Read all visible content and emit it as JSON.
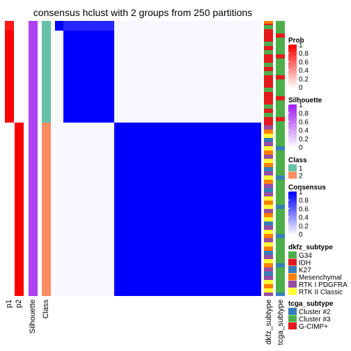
{
  "title": "consensus hclust with 2 groups from 250 partitions",
  "chart_data": {
    "type": "heatmap",
    "title": "consensus hclust with 2 groups from 250 partitions",
    "column_labels": [
      "p1",
      "p2",
      "Silhouette",
      "Class",
      "dkfz_subtype",
      "tcga_subtype"
    ],
    "groups": [
      {
        "class": "1",
        "share": 0.37,
        "p1": 1,
        "p2": 0,
        "silhouette": 0.85,
        "consensus_within": 1,
        "consensus_between": 0
      },
      {
        "class": "2",
        "share": 0.63,
        "p1": 0,
        "p2": 1,
        "silhouette": 0.85,
        "consensus_within": 1,
        "consensus_between": 0
      }
    ],
    "legends": [
      {
        "title": "Prob",
        "type": "continuous",
        "ticks": [
          "1",
          "0.8",
          "0.6",
          "0.4",
          "0.2",
          "0"
        ],
        "colors": [
          "#ff0000",
          "#ffffff"
        ]
      },
      {
        "title": "Silhouette",
        "type": "continuous",
        "ticks": [
          "1",
          "0.8",
          "0.6",
          "0.4",
          "0.2",
          "0"
        ],
        "colors": [
          "#a020f0",
          "#ffffff"
        ]
      },
      {
        "title": "Class",
        "type": "discrete",
        "items": [
          {
            "label": "1",
            "color": "#66c2a5"
          },
          {
            "label": "2",
            "color": "#fc8d62"
          }
        ]
      },
      {
        "title": "Consensus",
        "type": "continuous",
        "ticks": [
          "1",
          "0.8",
          "0.6",
          "0.4",
          "0.2",
          "0"
        ],
        "colors": [
          "#0000ff",
          "#ffffff"
        ]
      },
      {
        "title": "dkfz_subtype",
        "type": "discrete",
        "items": [
          {
            "label": "G34",
            "color": "#4daf4a"
          },
          {
            "label": "IDH",
            "color": "#e41a1c"
          },
          {
            "label": "K27",
            "color": "#377eb8"
          },
          {
            "label": "Mesenchymal",
            "color": "#ff7f00"
          },
          {
            "label": "RTK I PDGFRA",
            "color": "#984ea3"
          },
          {
            "label": "RTK II Classic",
            "color": "#ffff33"
          }
        ]
      },
      {
        "title": "tcga_subtype",
        "type": "discrete",
        "items": [
          {
            "label": "Cluster #2",
            "color": "#377eb8"
          },
          {
            "label": "Cluster #3",
            "color": "#4daf4a"
          },
          {
            "label": "G-CIMP+",
            "color": "#e41a1c"
          }
        ]
      }
    ]
  }
}
